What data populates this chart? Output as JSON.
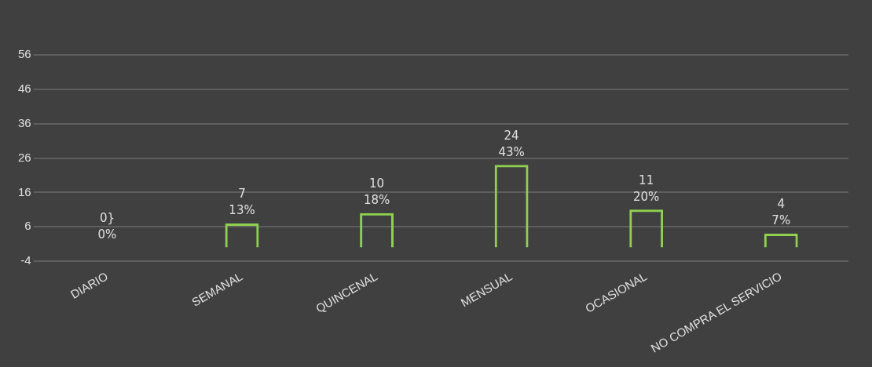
{
  "chart_data": {
    "type": "bar",
    "categories": [
      "DIARIO",
      "SEMANAL",
      "QUINCENAL",
      "MENSUAL",
      "OCASIONAL",
      "NO COMPRA EL SERVICIO"
    ],
    "values": [
      0,
      7,
      10,
      24,
      11,
      4
    ],
    "value_labels": [
      "0}\n0%",
      "7\n13%",
      "10\n18%",
      "24\n43%",
      "11\n20%",
      "4\n7%"
    ],
    "color": "#8fd14f",
    "ylim": [
      -4,
      56
    ],
    "yticks": [
      -4,
      6,
      16,
      26,
      36,
      46,
      56
    ],
    "grid": "y",
    "legend": false
  }
}
